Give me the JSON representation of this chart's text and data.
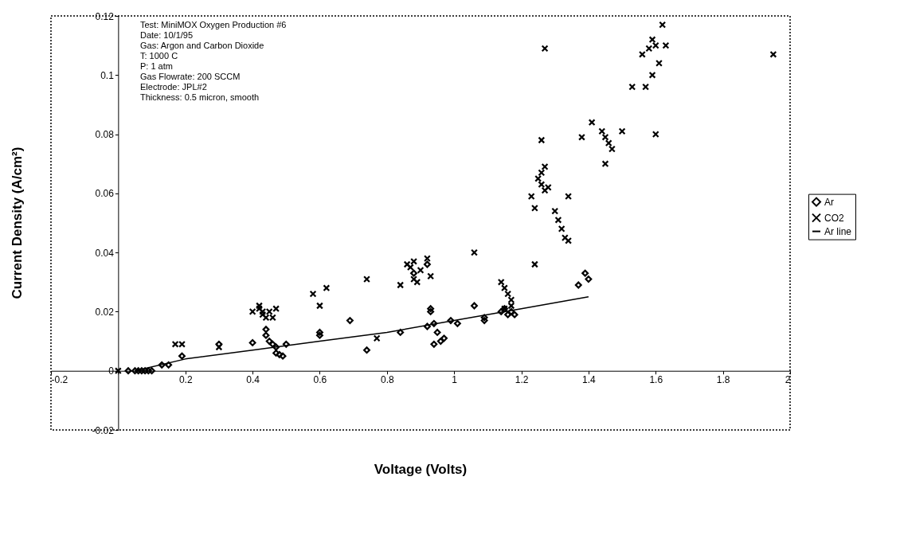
{
  "chart_data": {
    "type": "scatter",
    "xlabel": "Voltage (Volts)",
    "ylabel": "Current Density (A/cm²)",
    "annotations": [
      "Test: MiniMOX Oxygen Production #6",
      "Date: 10/1/95",
      "Gas: Argon and Carbon Dioxide",
      "T: 1000 C",
      "P: 1 atm",
      "Gas Flowrate: 200 SCCM",
      "Electrode: JPL#2",
      "Thickness: 0.5 micron, smooth"
    ],
    "xlim": [
      -0.2,
      2
    ],
    "ylim": [
      -0.02,
      0.12
    ],
    "xticks": [
      -0.2,
      {
        "value": 0,
        "label": null
      },
      0.2,
      0.4,
      0.6,
      0.8,
      1,
      1.2,
      1.4,
      1.6,
      1.8,
      2
    ],
    "yticks": [
      -0.02,
      0,
      0.02,
      0.04,
      0.06,
      0.08,
      0.1,
      0.12
    ],
    "grid": false,
    "legend": "right",
    "series": [
      {
        "name": "Ar",
        "color": "#000000",
        "marker": "diamond",
        "x": [
          0.03,
          0.05,
          0.06,
          0.07,
          0.08,
          0.09,
          0.1,
          0.13,
          0.15,
          0.19,
          0.3,
          0.4,
          0.44,
          0.44,
          0.45,
          0.46,
          0.47,
          0.47,
          0.48,
          0.49,
          0.5,
          0.6,
          0.6,
          0.69,
          0.74,
          0.84,
          0.88,
          0.92,
          0.92,
          0.93,
          0.93,
          0.94,
          0.95,
          0.94,
          0.96,
          0.97,
          0.99,
          1.01,
          1.06,
          1.09,
          1.09,
          1.14,
          1.15,
          1.16,
          1.17,
          1.18,
          1.37,
          1.39,
          1.4
        ],
        "values": [
          0,
          0,
          0,
          0,
          0,
          0,
          0,
          0.002,
          0.002,
          0.005,
          0.009,
          0.0095,
          0.014,
          0.012,
          0.01,
          0.009,
          0.008,
          0.006,
          0.0055,
          0.005,
          0.009,
          0.013,
          0.012,
          0.017,
          0.007,
          0.013,
          0.033,
          0.036,
          0.015,
          0.021,
          0.02,
          0.016,
          0.013,
          0.009,
          0.01,
          0.011,
          0.017,
          0.016,
          0.022,
          0.018,
          0.017,
          0.02,
          0.021,
          0.019,
          0.02,
          0.019,
          0.029,
          0.033,
          0.031
        ]
      },
      {
        "name": "CO2",
        "color": "#000000",
        "marker": "cross",
        "x": [
          0,
          0.17,
          0.19,
          0.3,
          0.4,
          0.42,
          0.43,
          0.44,
          0.45,
          0.42,
          0.43,
          0.47,
          0.46,
          0.58,
          0.6,
          0.62,
          0.74,
          0.77,
          0.84,
          0.86,
          0.87,
          0.88,
          0.88,
          0.89,
          0.9,
          0.92,
          0.93,
          1.06,
          1.14,
          1.15,
          1.16,
          1.17,
          1.15,
          1.17,
          1.23,
          1.24,
          1.24,
          1.25,
          1.26,
          1.26,
          1.27,
          1.27,
          1.28,
          1.26,
          1.27,
          1.3,
          1.31,
          1.32,
          1.33,
          1.34,
          1.34,
          1.38,
          1.41,
          1.44,
          1.45,
          1.46,
          1.47,
          1.45,
          1.5,
          1.53,
          1.56,
          1.57,
          1.58,
          1.59,
          1.6,
          1.59,
          1.6,
          1.61,
          1.62,
          1.63,
          1.95
        ],
        "values": [
          0,
          0.009,
          0.009,
          0.008,
          0.02,
          0.021,
          0.019,
          0.018,
          0.02,
          0.022,
          0.02,
          0.021,
          0.018,
          0.026,
          0.022,
          0.028,
          0.031,
          0.011,
          0.029,
          0.036,
          0.035,
          0.037,
          0.031,
          0.03,
          0.034,
          0.038,
          0.032,
          0.04,
          0.03,
          0.028,
          0.026,
          0.024,
          0.021,
          0.022,
          0.059,
          0.055,
          0.036,
          0.065,
          0.067,
          0.063,
          0.069,
          0.061,
          0.062,
          0.078,
          0.109,
          0.054,
          0.051,
          0.048,
          0.045,
          0.044,
          0.059,
          0.079,
          0.084,
          0.081,
          0.079,
          0.077,
          0.075,
          0.07,
          0.081,
          0.096,
          0.107,
          0.096,
          0.109,
          0.112,
          0.11,
          0.1,
          0.08,
          0.104,
          0.117,
          0.11,
          0.107
        ]
      },
      {
        "name": "Ar line",
        "type": "line",
        "color": "#000000",
        "marker": "none",
        "line_style": "solid",
        "x": [
          0.05,
          0.2,
          0.4,
          0.6,
          0.8,
          1.0,
          1.2,
          1.4
        ],
        "values": [
          0,
          0.004,
          0.007,
          0.01,
          0.013,
          0.017,
          0.021,
          0.025
        ]
      }
    ]
  }
}
